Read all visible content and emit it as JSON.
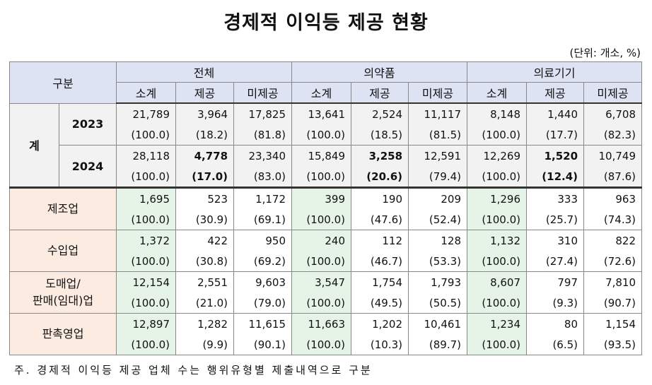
{
  "title": "경제적 이익등 제공 현황",
  "unit": "(단위: 개소, %)",
  "note": "주. 경제적 이익등 제공 업체 수는 행위유형별 제출내역으로 구분",
  "header": {
    "category": "구분",
    "groups": [
      "전체",
      "의약품",
      "의료기기"
    ],
    "subcols": [
      "소계",
      "제공",
      "미제공"
    ]
  },
  "total_label": "계",
  "years": [
    {
      "year": "2023",
      "counts": [
        "21,789",
        "3,964",
        "17,825",
        "13,641",
        "2,524",
        "11,117",
        "8,148",
        "1,440",
        "6,708"
      ],
      "pcts": [
        "(100.0)",
        "(18.2)",
        "(81.8)",
        "(100.0)",
        "(18.5)",
        "(81.5)",
        "(100.0)",
        "(17.7)",
        "(82.3)"
      ]
    },
    {
      "year": "2024",
      "counts": [
        "28,118",
        "4,778",
        "23,340",
        "15,849",
        "3,258",
        "12,591",
        "12,269",
        "1,520",
        "10,749"
      ],
      "pcts": [
        "(100.0)",
        "(17.0)",
        "(83.0)",
        "(100.0)",
        "(20.6)",
        "(79.4)",
        "(100.0)",
        "(12.4)",
        "(87.6)"
      ]
    }
  ],
  "rows": [
    {
      "label": "제조업",
      "counts": [
        "1,695",
        "523",
        "1,172",
        "399",
        "190",
        "209",
        "1,296",
        "333",
        "963"
      ],
      "pcts": [
        "(100.0)",
        "(30.9)",
        "(69.1)",
        "(100.0)",
        "(47.6)",
        "(52.4)",
        "(100.0)",
        "(25.7)",
        "(74.3)"
      ]
    },
    {
      "label": "수입업",
      "counts": [
        "1,372",
        "422",
        "950",
        "240",
        "112",
        "128",
        "1,132",
        "310",
        "822"
      ],
      "pcts": [
        "(100.0)",
        "(30.8)",
        "(69.2)",
        "(100.0)",
        "(46.7)",
        "(53.3)",
        "(100.0)",
        "(27.4)",
        "(72.6)"
      ]
    },
    {
      "label": "도매업/\n판매(임대)업",
      "counts": [
        "12,154",
        "2,551",
        "9,603",
        "3,547",
        "1,754",
        "1,793",
        "8,607",
        "797",
        "7,810"
      ],
      "pcts": [
        "(100.0)",
        "(21.0)",
        "(79.0)",
        "(100.0)",
        "(49.5)",
        "(50.5)",
        "(100.0)",
        "(9.3)",
        "(90.7)"
      ]
    },
    {
      "label": "판촉영업",
      "counts": [
        "12,897",
        "1,282",
        "11,615",
        "11,663",
        "1,202",
        "10,461",
        "1,234",
        "80",
        "1,154"
      ],
      "pcts": [
        "(100.0)",
        "(9.9)",
        "(90.1)",
        "(100.0)",
        "(10.3)",
        "(89.7)",
        "(100.0)",
        "(6.5)",
        "(93.5)"
      ]
    }
  ]
}
